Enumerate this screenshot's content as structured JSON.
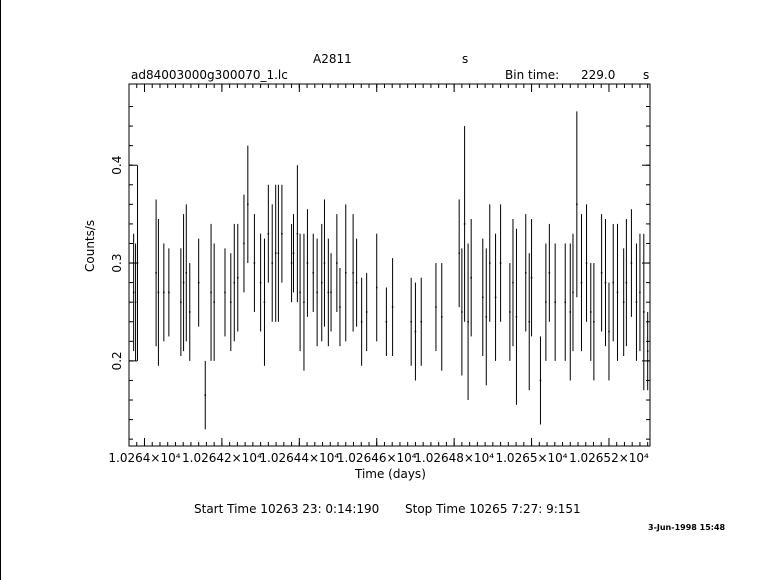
{
  "header": {
    "object": "A2811",
    "units_mark": "s",
    "filename": "ad84003000g300070_1.lc",
    "bin_label": "Bin time:",
    "bin_value": "229.0",
    "bin_unit": "s"
  },
  "footer": {
    "start_time": "Start Time 10263 23: 0:14:190",
    "stop_time": "Stop Time 10265  7:27: 9:151",
    "stamp": "3-Jun-1998 15:48"
  },
  "chart_data": {
    "type": "scatter",
    "xlabel": "Time (days)",
    "ylabel": "Counts/s",
    "xlim": [
      10263.96,
      10265.306
    ],
    "ylim": [
      0.113,
      0.483
    ],
    "x_ticks": [
      {
        "value": 10264.0,
        "label": "1.0264×10⁴"
      },
      {
        "value": 10264.2,
        "label": "1.02642×10⁴"
      },
      {
        "value": 10264.4,
        "label": "1.02644×10⁴"
      },
      {
        "value": 10264.6,
        "label": "1.02646×10⁴"
      },
      {
        "value": 10264.8,
        "label": "1.02648×10⁴"
      },
      {
        "value": 10265.0,
        "label": "1.0265×10⁴"
      },
      {
        "value": 10265.2,
        "label": "1.02652×10⁴"
      }
    ],
    "y_ticks": [
      {
        "value": 0.2,
        "label": "0.2"
      },
      {
        "value": 0.3,
        "label": "0.3"
      },
      {
        "value": 0.4,
        "label": "0.4"
      }
    ],
    "series": [
      {
        "points": [
          {
            "x": 10263.972,
            "y": 0.27,
            "err": 0.06
          },
          {
            "x": 10263.977,
            "y": 0.26,
            "err": 0.06
          },
          {
            "x": 10263.982,
            "y": 0.3,
            "err": 0.1
          },
          {
            "x": 10264.03,
            "y": 0.29,
            "err": 0.075
          },
          {
            "x": 10264.036,
            "y": 0.27,
            "err": 0.075
          },
          {
            "x": 10264.05,
            "y": 0.27,
            "err": 0.05
          },
          {
            "x": 10264.063,
            "y": 0.27,
            "err": 0.045
          },
          {
            "x": 10264.094,
            "y": 0.26,
            "err": 0.055
          },
          {
            "x": 10264.101,
            "y": 0.28,
            "err": 0.07
          },
          {
            "x": 10264.108,
            "y": 0.29,
            "err": 0.07
          },
          {
            "x": 10264.117,
            "y": 0.25,
            "err": 0.05
          },
          {
            "x": 10264.14,
            "y": 0.28,
            "err": 0.045
          },
          {
            "x": 10264.157,
            "y": 0.165,
            "err": 0.035
          },
          {
            "x": 10264.172,
            "y": 0.27,
            "err": 0.07
          },
          {
            "x": 10264.18,
            "y": 0.26,
            "err": 0.06
          },
          {
            "x": 10264.208,
            "y": 0.27,
            "err": 0.045
          },
          {
            "x": 10264.223,
            "y": 0.26,
            "err": 0.05
          },
          {
            "x": 10264.232,
            "y": 0.28,
            "err": 0.06
          },
          {
            "x": 10264.241,
            "y": 0.285,
            "err": 0.055
          },
          {
            "x": 10264.257,
            "y": 0.32,
            "err": 0.05
          },
          {
            "x": 10264.267,
            "y": 0.36,
            "err": 0.06
          },
          {
            "x": 10264.284,
            "y": 0.3,
            "err": 0.05
          },
          {
            "x": 10264.3,
            "y": 0.28,
            "err": 0.05
          },
          {
            "x": 10264.31,
            "y": 0.26,
            "err": 0.065
          },
          {
            "x": 10264.32,
            "y": 0.33,
            "err": 0.05
          },
          {
            "x": 10264.33,
            "y": 0.3,
            "err": 0.06
          },
          {
            "x": 10264.339,
            "y": 0.31,
            "err": 0.07
          },
          {
            "x": 10264.346,
            "y": 0.31,
            "err": 0.07
          },
          {
            "x": 10264.355,
            "y": 0.33,
            "err": 0.05
          },
          {
            "x": 10264.38,
            "y": 0.3,
            "err": 0.04
          },
          {
            "x": 10264.385,
            "y": 0.31,
            "err": 0.04
          },
          {
            "x": 10264.395,
            "y": 0.33,
            "err": 0.07
          },
          {
            "x": 10264.402,
            "y": 0.27,
            "err": 0.06
          },
          {
            "x": 10264.412,
            "y": 0.26,
            "err": 0.07
          },
          {
            "x": 10264.421,
            "y": 0.3,
            "err": 0.055
          },
          {
            "x": 10264.436,
            "y": 0.29,
            "err": 0.04
          },
          {
            "x": 10264.446,
            "y": 0.27,
            "err": 0.055
          },
          {
            "x": 10264.458,
            "y": 0.28,
            "err": 0.06
          },
          {
            "x": 10264.465,
            "y": 0.3,
            "err": 0.065
          },
          {
            "x": 10264.475,
            "y": 0.27,
            "err": 0.055
          },
          {
            "x": 10264.482,
            "y": 0.27,
            "err": 0.04
          },
          {
            "x": 10264.497,
            "y": 0.3,
            "err": 0.05
          },
          {
            "x": 10264.505,
            "y": 0.255,
            "err": 0.04
          },
          {
            "x": 10264.52,
            "y": 0.29,
            "err": 0.07
          },
          {
            "x": 10264.539,
            "y": 0.29,
            "err": 0.06
          },
          {
            "x": 10264.548,
            "y": 0.28,
            "err": 0.045
          },
          {
            "x": 10264.561,
            "y": 0.24,
            "err": 0.045
          },
          {
            "x": 10264.574,
            "y": 0.25,
            "err": 0.04
          },
          {
            "x": 10264.6,
            "y": 0.275,
            "err": 0.055
          },
          {
            "x": 10264.625,
            "y": 0.24,
            "err": 0.035
          },
          {
            "x": 10264.641,
            "y": 0.255,
            "err": 0.05
          },
          {
            "x": 10264.689,
            "y": 0.24,
            "err": 0.045
          },
          {
            "x": 10264.7,
            "y": 0.23,
            "err": 0.05
          },
          {
            "x": 10264.715,
            "y": 0.24,
            "err": 0.045
          },
          {
            "x": 10264.753,
            "y": 0.255,
            "err": 0.045
          },
          {
            "x": 10264.768,
            "y": 0.245,
            "err": 0.055
          },
          {
            "x": 10264.813,
            "y": 0.31,
            "err": 0.055
          },
          {
            "x": 10264.82,
            "y": 0.25,
            "err": 0.065
          },
          {
            "x": 10264.827,
            "y": 0.34,
            "err": 0.1
          },
          {
            "x": 10264.836,
            "y": 0.24,
            "err": 0.08
          },
          {
            "x": 10264.844,
            "y": 0.285,
            "err": 0.06
          },
          {
            "x": 10264.874,
            "y": 0.265,
            "err": 0.06
          },
          {
            "x": 10264.883,
            "y": 0.245,
            "err": 0.07
          },
          {
            "x": 10264.892,
            "y": 0.3,
            "err": 0.06
          },
          {
            "x": 10264.907,
            "y": 0.265,
            "err": 0.065
          },
          {
            "x": 10264.92,
            "y": 0.3,
            "err": 0.06
          },
          {
            "x": 10264.944,
            "y": 0.25,
            "err": 0.05
          },
          {
            "x": 10264.952,
            "y": 0.28,
            "err": 0.065
          },
          {
            "x": 10264.961,
            "y": 0.245,
            "err": 0.09
          },
          {
            "x": 10264.985,
            "y": 0.29,
            "err": 0.06
          },
          {
            "x": 10264.994,
            "y": 0.24,
            "err": 0.07
          },
          {
            "x": 10265.0,
            "y": 0.285,
            "err": 0.06
          },
          {
            "x": 10265.023,
            "y": 0.18,
            "err": 0.045
          },
          {
            "x": 10265.037,
            "y": 0.26,
            "err": 0.06
          },
          {
            "x": 10265.046,
            "y": 0.29,
            "err": 0.05
          },
          {
            "x": 10265.061,
            "y": 0.26,
            "err": 0.06
          },
          {
            "x": 10265.087,
            "y": 0.26,
            "err": 0.06
          },
          {
            "x": 10265.1,
            "y": 0.25,
            "err": 0.07
          },
          {
            "x": 10265.107,
            "y": 0.27,
            "err": 0.06
          },
          {
            "x": 10265.117,
            "y": 0.36,
            "err": 0.095
          },
          {
            "x": 10265.129,
            "y": 0.28,
            "err": 0.07
          },
          {
            "x": 10265.142,
            "y": 0.3,
            "err": 0.06
          },
          {
            "x": 10265.153,
            "y": 0.25,
            "err": 0.05
          },
          {
            "x": 10265.161,
            "y": 0.24,
            "err": 0.06
          },
          {
            "x": 10265.181,
            "y": 0.29,
            "err": 0.06
          },
          {
            "x": 10265.191,
            "y": 0.28,
            "err": 0.065
          },
          {
            "x": 10265.2,
            "y": 0.23,
            "err": 0.05
          },
          {
            "x": 10265.211,
            "y": 0.28,
            "err": 0.06
          },
          {
            "x": 10265.222,
            "y": 0.27,
            "err": 0.07
          },
          {
            "x": 10265.238,
            "y": 0.26,
            "err": 0.055
          },
          {
            "x": 10265.245,
            "y": 0.28,
            "err": 0.065
          },
          {
            "x": 10265.258,
            "y": 0.3,
            "err": 0.055
          },
          {
            "x": 10265.271,
            "y": 0.26,
            "err": 0.06
          },
          {
            "x": 10265.28,
            "y": 0.27,
            "err": 0.06
          },
          {
            "x": 10265.29,
            "y": 0.25,
            "err": 0.08
          },
          {
            "x": 10265.3,
            "y": 0.21,
            "err": 0.04
          }
        ]
      }
    ]
  }
}
